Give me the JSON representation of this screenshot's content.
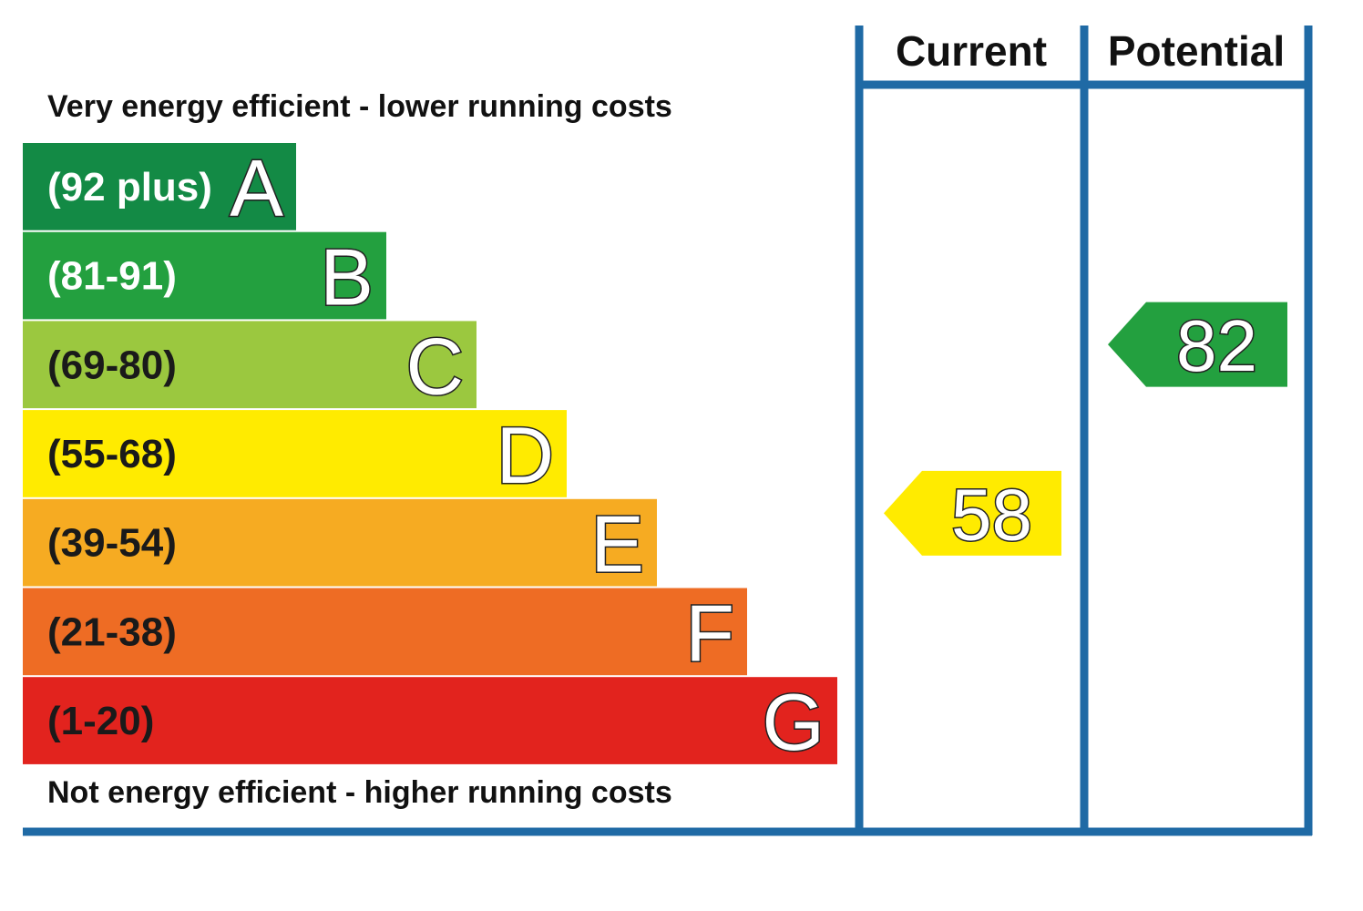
{
  "chart_data": {
    "type": "bar",
    "top_caption": "Very energy efficient - lower running costs",
    "bottom_caption": "Not energy efficient - higher running costs",
    "columns": [
      "Current",
      "Potential"
    ],
    "bands": [
      {
        "letter": "A",
        "range": "(92 plus)",
        "min": 92,
        "max": 100,
        "color": "#138a45",
        "text_color": "#ffffff"
      },
      {
        "letter": "B",
        "range": "(81-91)",
        "min": 81,
        "max": 91,
        "color": "#23a03f",
        "text_color": "#ffffff"
      },
      {
        "letter": "C",
        "range": "(69-80)",
        "min": 69,
        "max": 80,
        "color": "#9bc83f",
        "text_color": "#1a1a1a"
      },
      {
        "letter": "D",
        "range": "(55-68)",
        "min": 55,
        "max": 68,
        "color": "#ffeb00",
        "text_color": "#1a1a1a"
      },
      {
        "letter": "E",
        "range": "(39-54)",
        "min": 39,
        "max": 54,
        "color": "#f6ab22",
        "text_color": "#1a1a1a"
      },
      {
        "letter": "F",
        "range": "(21-38)",
        "min": 21,
        "max": 38,
        "color": "#ee6c24",
        "text_color": "#1a1a1a"
      },
      {
        "letter": "G",
        "range": "(1-20)",
        "min": 1,
        "max": 20,
        "color": "#e2231e",
        "text_color": "#1a1a1a"
      }
    ],
    "ratings": [
      {
        "column": "Current",
        "value": 58,
        "band": "D",
        "color": "#ffeb00"
      },
      {
        "column": "Potential",
        "value": 82,
        "band": "B",
        "color": "#23a03f"
      }
    ],
    "frame_color": "#1f6aa5"
  }
}
